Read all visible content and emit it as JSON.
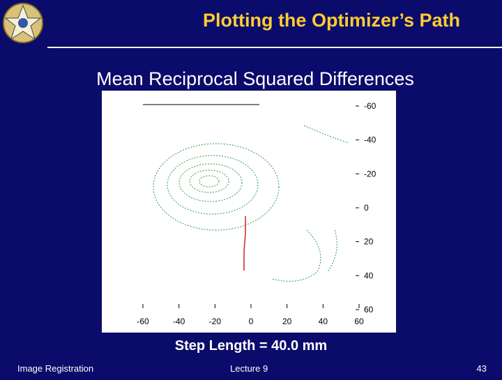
{
  "header": {
    "title": "Plotting the Optimizer’s Path"
  },
  "subtitle": "Mean Reciprocal Squared Differences",
  "figure": {
    "xticks": [
      -60,
      -40,
      -20,
      0,
      20,
      40,
      60
    ],
    "yticks": [
      -60,
      -40,
      -20,
      0,
      20,
      40,
      60
    ],
    "caption": "Step Length = 40.0 mm"
  },
  "footer": {
    "left": "Image Registration",
    "center": "Lecture 9",
    "page": 43
  }
}
